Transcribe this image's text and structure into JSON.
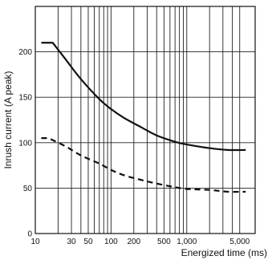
{
  "chart_data": {
    "type": "line",
    "xlabel": "Energized time (ms)",
    "ylabel": "Inrush current (A peak)",
    "xscale": "log",
    "xlim": [
      10,
      8000
    ],
    "ylim": [
      0,
      250
    ],
    "grid": true,
    "x_tick_values": [
      10,
      30,
      50,
      100,
      200,
      500,
      1000,
      5000
    ],
    "x_tick_labels": [
      "10",
      "30",
      "50",
      "100",
      "200",
      "500",
      "1,000",
      "5,000"
    ],
    "x_grid_values": [
      10,
      20,
      30,
      40,
      50,
      60,
      70,
      80,
      90,
      100,
      200,
      300,
      400,
      500,
      600,
      700,
      800,
      900,
      1000,
      2000,
      3000,
      4000,
      5000,
      8000
    ],
    "y_tick_values": [
      0,
      50,
      100,
      150,
      200
    ],
    "y_tick_labels": [
      "0",
      "50",
      "100",
      "150",
      "200"
    ],
    "series": [
      {
        "style": "solid",
        "color": "#111111",
        "x": [
          12,
          17,
          25,
          40,
          70,
          100,
          150,
          250,
          400,
          700,
          1000,
          2000,
          3500,
          6000
        ],
        "y": [
          210,
          210,
          192,
          170,
          148,
          137,
          127,
          117,
          108,
          101,
          98,
          94,
          92,
          92
        ]
      },
      {
        "style": "dashed",
        "color": "#111111",
        "x": [
          12,
          15,
          25,
          40,
          70,
          100,
          150,
          250,
          400,
          700,
          1000,
          2000,
          3500,
          6000
        ],
        "y": [
          105,
          105,
          96,
          86,
          77,
          70,
          64,
          59,
          55,
          51,
          49,
          48,
          46,
          46
        ]
      }
    ]
  }
}
